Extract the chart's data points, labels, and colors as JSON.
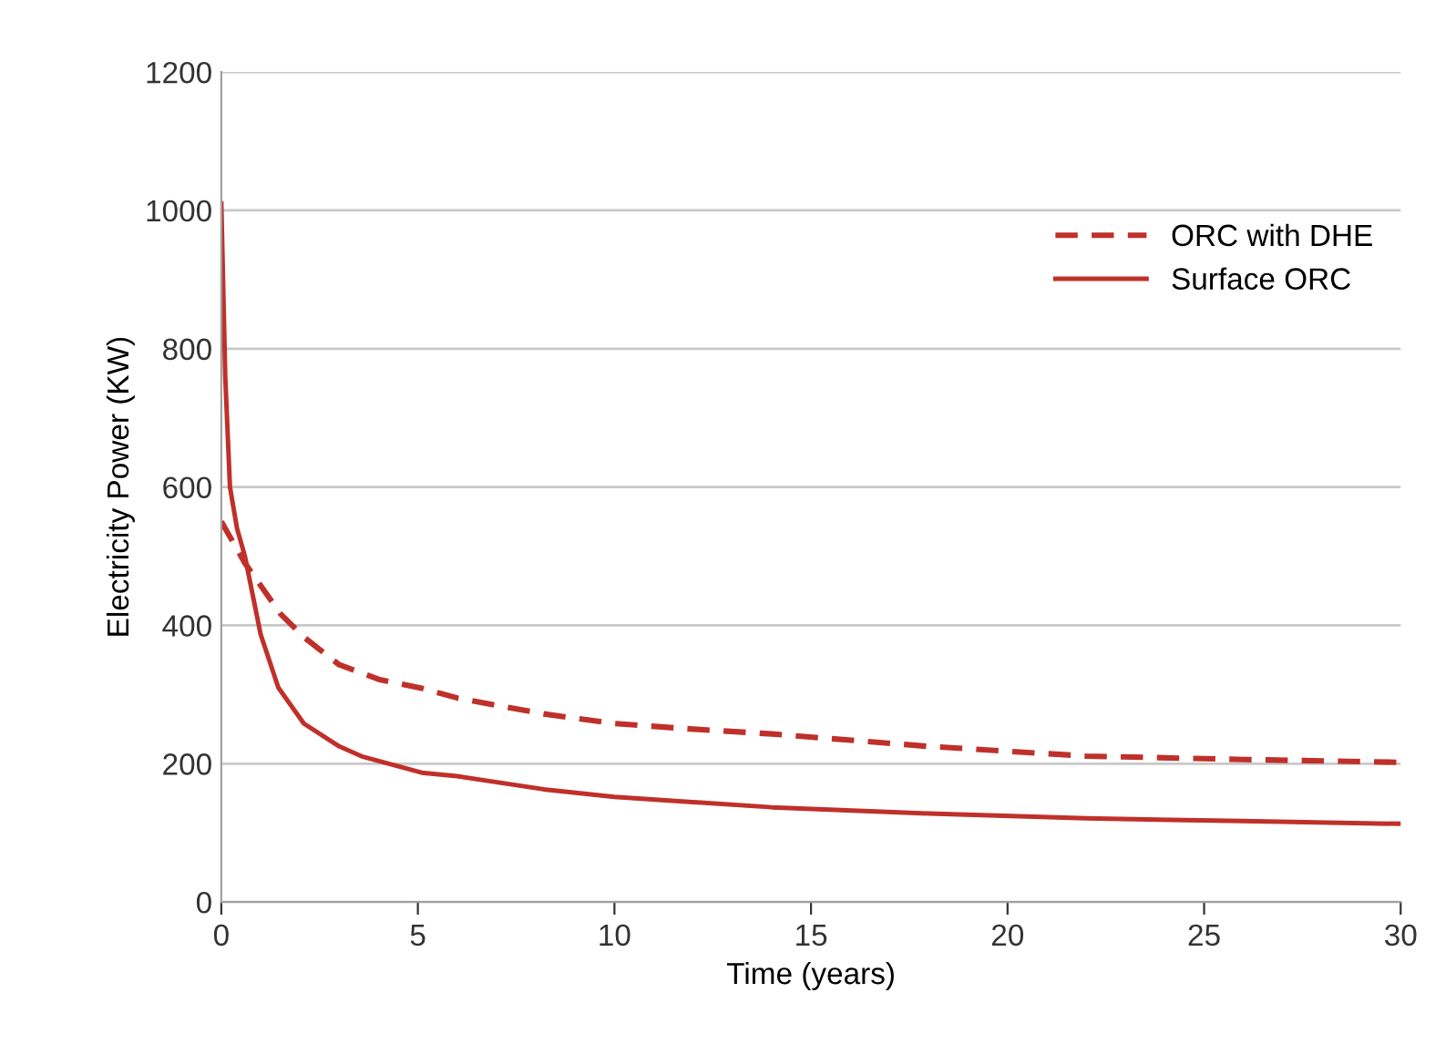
{
  "chart_data": {
    "type": "line",
    "xlabel": "Time (years)",
    "ylabel": "Electricity Power (KW)",
    "xlim": [
      0,
      30
    ],
    "xticks": [
      0,
      5,
      10,
      15,
      20,
      25,
      30
    ],
    "ylim": [
      0,
      1200
    ],
    "yticks": [
      0,
      200,
      400,
      600,
      800,
      1000,
      1200
    ],
    "grid": "y",
    "legend": "top right",
    "series": [
      {
        "name": "ORC with DHE",
        "color": "#c0302a",
        "line_style": "dashed",
        "x": [
          0,
          0.6,
          1.5,
          2.1,
          3,
          4,
          5.1,
          6,
          8.2,
          10,
          12,
          14,
          18,
          22,
          26,
          30
        ],
        "values": [
          550,
          490,
          417,
          383,
          343,
          322,
          309,
          295,
          272,
          258,
          250,
          243,
          225,
          211,
          206,
          202
        ]
      },
      {
        "name": "Surface ORC",
        "color": "#c0302a",
        "line_style": "solid",
        "x": [
          0,
          0.1,
          0.22,
          0.4,
          0.6,
          1,
          1.45,
          2.1,
          3,
          3.6,
          5.1,
          6,
          8.2,
          10,
          14,
          18,
          22,
          26,
          30
        ],
        "values": [
          1010,
          760,
          600,
          540,
          500,
          387,
          310,
          258,
          225,
          210,
          187,
          182,
          163,
          152,
          137,
          128,
          121,
          117,
          113
        ]
      }
    ]
  }
}
